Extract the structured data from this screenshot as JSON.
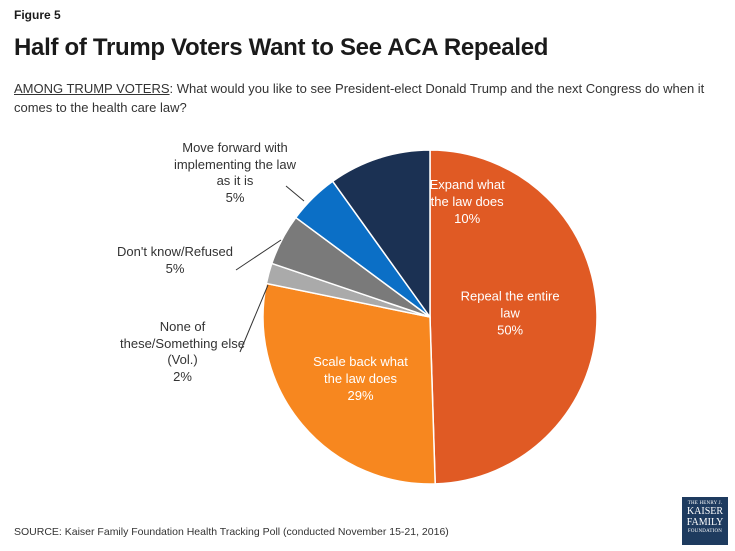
{
  "figure_label": "Figure 5",
  "title": "Half of Trump Voters Want to See ACA Repealed",
  "subtitle_lead": "AMONG TRUMP VOTERS",
  "subtitle_rest": ": What would you like to see President-elect Donald Trump and the next Congress do when it comes to the health care law?",
  "source": "SOURCE: Kaiser Family Foundation Health Tracking Poll (conducted November 15-21, 2016)",
  "logo": {
    "line1": "THE HENRY J.",
    "line2": "KAISER",
    "line3": "FAMILY",
    "line4": "FOUNDATION"
  },
  "chart_data": {
    "type": "pie",
    "title": "Half of Trump Voters Want to See ACA Repealed",
    "slices": [
      {
        "label": "Repeal the entire law",
        "lines": [
          "Repeal the entire",
          "law"
        ],
        "value": 50,
        "value_label": "50%",
        "color": "#e05a24",
        "label_inside": true
      },
      {
        "label": "Scale back what the law does",
        "lines": [
          "Scale back what",
          "the law does"
        ],
        "value": 29,
        "value_label": "29%",
        "color": "#f7871f",
        "label_inside": true
      },
      {
        "label": "None of these/Something else (Vol.)",
        "lines": [
          "None of",
          "these/Something else",
          "(Vol.)"
        ],
        "value": 2,
        "value_label": "2%",
        "color": "#aaaaaa",
        "label_inside": false
      },
      {
        "label": "Don't know/Refused",
        "lines": [
          "Don't know/Refused"
        ],
        "value": 5,
        "value_label": "5%",
        "color": "#7a7a7a",
        "label_inside": false
      },
      {
        "label": "Move forward with implementing the law as it is",
        "lines": [
          "Move forward with",
          "implementing the law",
          "as it is"
        ],
        "value": 5,
        "value_label": "5%",
        "color": "#0b6fc6",
        "label_inside": false
      },
      {
        "label": "Expand what the law does",
        "lines": [
          "Expand what",
          "the law does"
        ],
        "value": 10,
        "value_label": "10%",
        "color": "#1b3153",
        "label_inside": true
      }
    ]
  }
}
